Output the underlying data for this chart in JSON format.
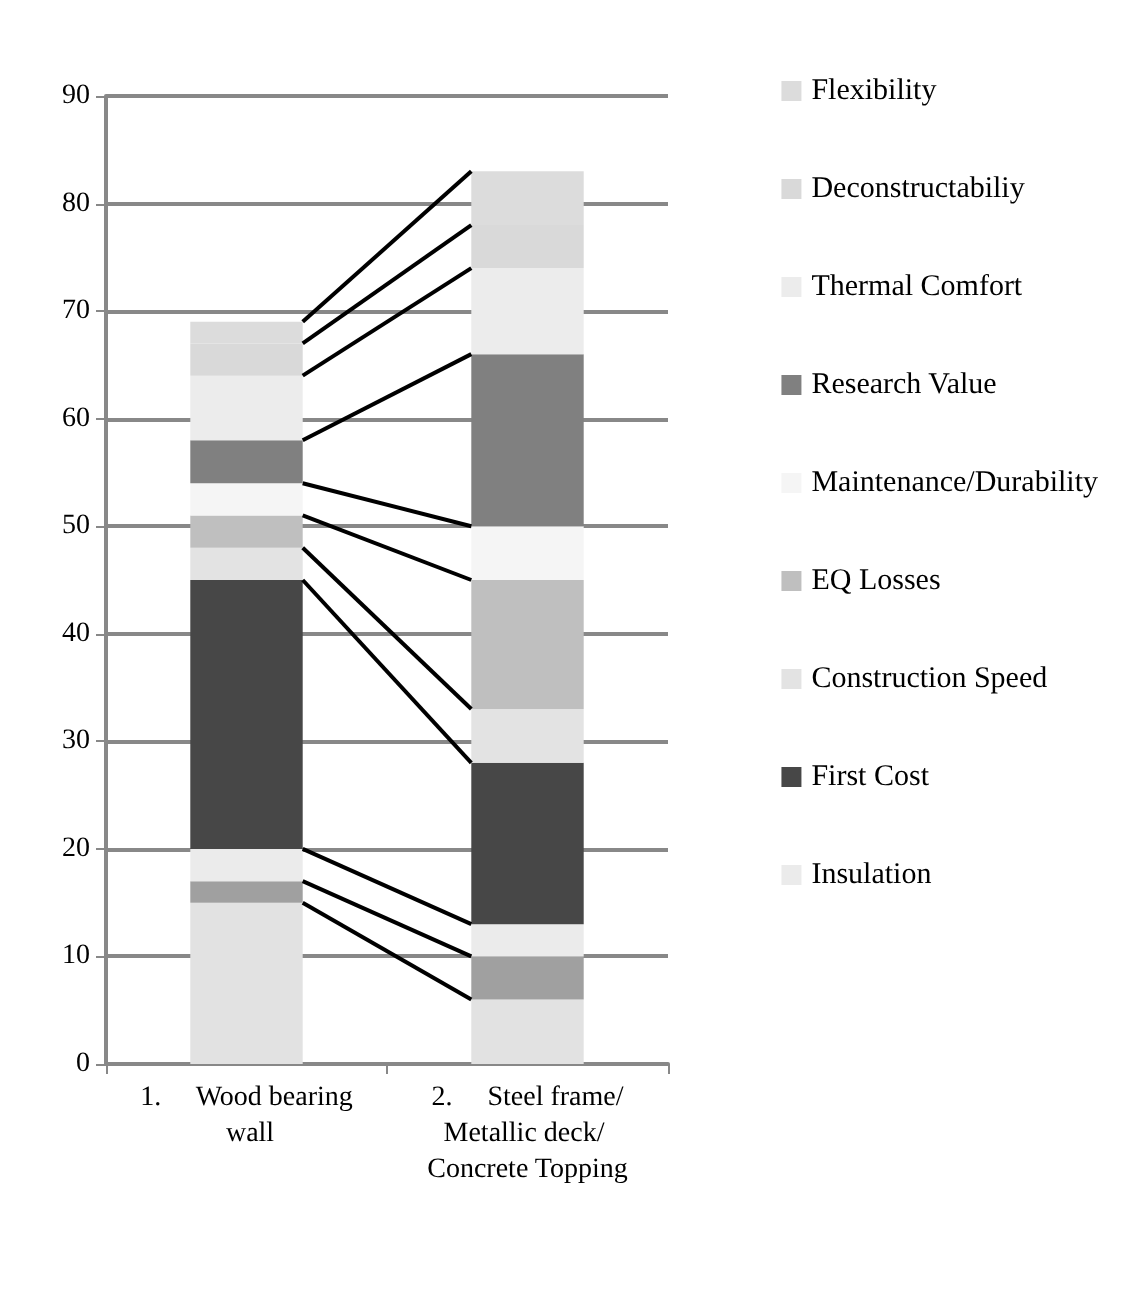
{
  "chart_data": {
    "type": "bar",
    "stacked": true,
    "categories": [
      "1.     Wood bearing wall",
      "2.     Steel frame/Metallic deck/ Concrete Topping"
    ],
    "series": [
      {
        "color": "#e2e2e2",
        "values": [
          15,
          6
        ]
      },
      {
        "color": "#a0a0a0",
        "values": [
          2,
          4
        ]
      },
      {
        "name": "Insulation",
        "color": "#ebebeb",
        "values": [
          3,
          3
        ]
      },
      {
        "name": "First Cost",
        "color": "#474747",
        "values": [
          25,
          15
        ]
      },
      {
        "name": "Construction Speed",
        "color": "#e3e3e3",
        "values": [
          3,
          5
        ]
      },
      {
        "name": "EQ Losses",
        "color": "#bfbfbf",
        "values": [
          3,
          12
        ]
      },
      {
        "name": "Maintenance/Durability",
        "color": "#f5f5f5",
        "values": [
          3,
          5
        ]
      },
      {
        "name": "Research Value",
        "color": "#808080",
        "values": [
          4,
          16
        ]
      },
      {
        "name": "Thermal Comfort",
        "color": "#ececec",
        "values": [
          6,
          8
        ]
      },
      {
        "name": "Deconstructabiliy",
        "color": "#d9d9d9",
        "values": [
          3,
          4
        ]
      },
      {
        "name": "Flexibility",
        "color": "#dcdcdc",
        "values": [
          2,
          5
        ]
      }
    ],
    "ylim": [
      0,
      90
    ],
    "yticks": [
      0,
      10,
      20,
      30,
      40,
      50,
      60,
      70,
      80,
      90
    ],
    "grid": "y",
    "legend": "right"
  }
}
